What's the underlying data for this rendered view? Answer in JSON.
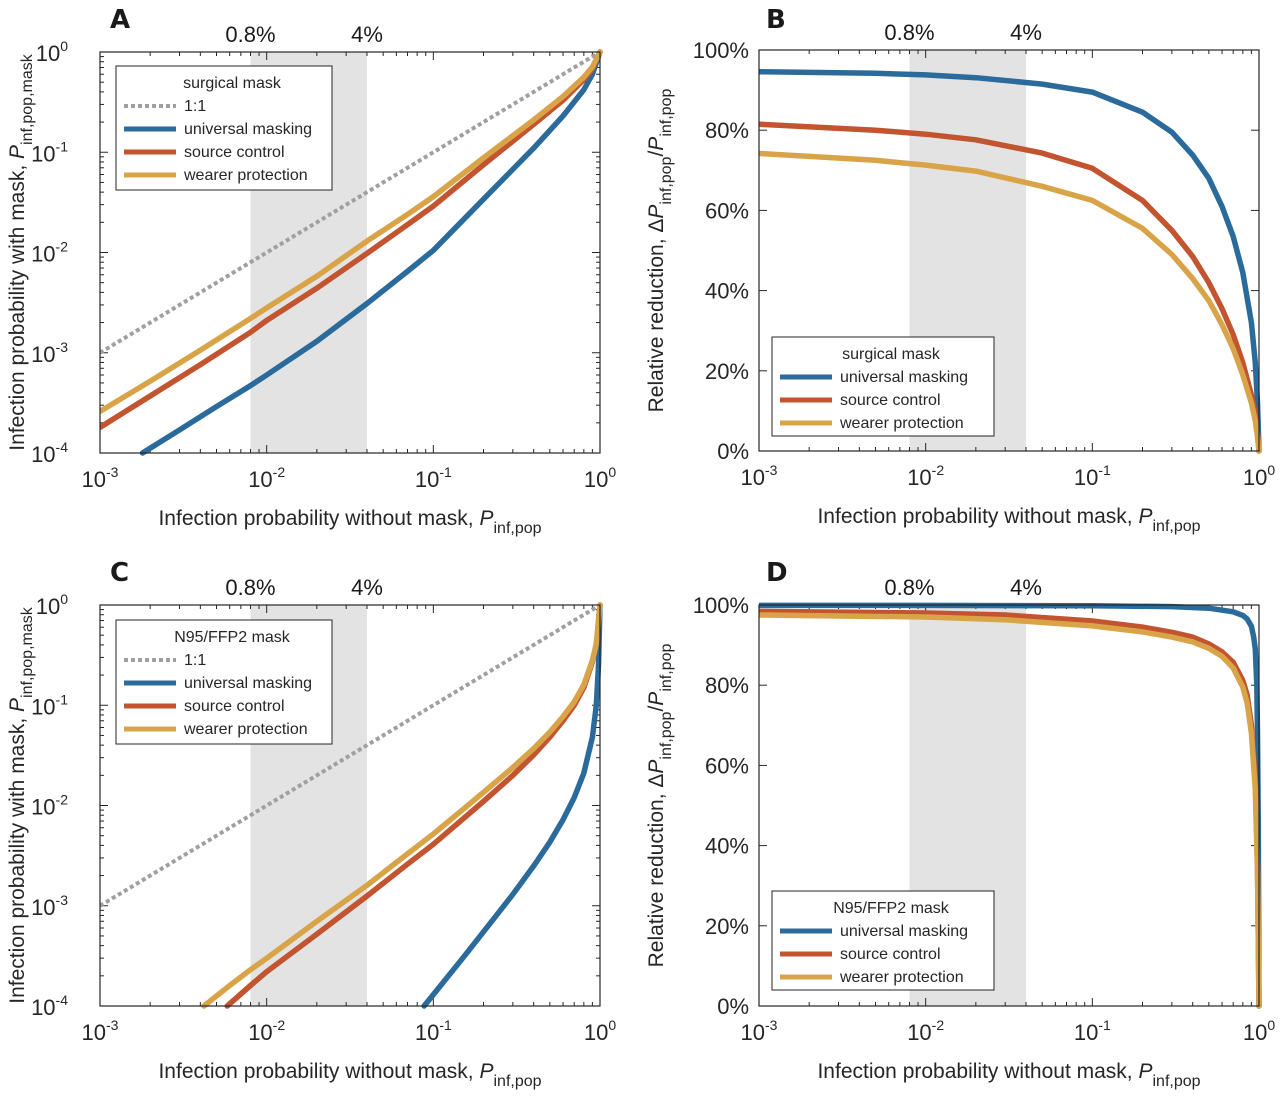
{
  "colors": {
    "universal": "#2a6b9c",
    "source": "#c2542f",
    "wearer": "#d9a448",
    "one_to_one": "#a0a0a0",
    "band": "#e3e3e3",
    "axis": "#262626"
  },
  "chart_data": [
    {
      "panel": "A",
      "type": "line",
      "x_scale": "log",
      "y_scale": "log",
      "xlim": [
        0.001,
        1
      ],
      "ylim": [
        0.0001,
        1
      ],
      "x_ticks": [
        {
          "base": "10",
          "exp": "-3"
        },
        {
          "base": "10",
          "exp": "-2"
        },
        {
          "base": "10",
          "exp": "-1"
        },
        {
          "base": "10",
          "exp": "0"
        }
      ],
      "y_ticks": [
        {
          "base": "10",
          "exp": "-4"
        },
        {
          "base": "10",
          "exp": "-3"
        },
        {
          "base": "10",
          "exp": "-2"
        },
        {
          "base": "10",
          "exp": "-1"
        },
        {
          "base": "10",
          "exp": "0"
        }
      ],
      "xlabel": {
        "main": "Infection probability without mask, ",
        "var": "P",
        "sub": "inf,pop"
      },
      "ylabel": {
        "main": "Infection probability with mask, ",
        "var": "P",
        "sub": "inf,pop,mask"
      },
      "band": {
        "from": 0.008,
        "to": 0.04,
        "labels": [
          "0.8%",
          "4%"
        ]
      },
      "legend": {
        "title": "surgical mask",
        "entries": [
          {
            "key": "one_to_one",
            "label": "1:1"
          },
          {
            "key": "universal",
            "label": "universal masking"
          },
          {
            "key": "source",
            "label": "source control"
          },
          {
            "key": "wearer",
            "label": "wearer protection"
          }
        ]
      },
      "series": [
        {
          "key": "one_to_one",
          "name": "1:1",
          "style": "dotted",
          "x": [
            0.001,
            0.01,
            0.1,
            1
          ],
          "y": [
            0.001,
            0.01,
            0.1,
            1
          ]
        },
        {
          "key": "universal",
          "name": "universal masking",
          "style": "solid",
          "x": [
            0.0018,
            0.003,
            0.005,
            0.008,
            0.01,
            0.02,
            0.04,
            0.07,
            0.1,
            0.2,
            0.4,
            0.6,
            0.8,
            0.9,
            1
          ],
          "y": [
            0.0001,
            0.00017,
            0.00029,
            0.00047,
            0.0006,
            0.0013,
            0.0031,
            0.0065,
            0.0105,
            0.034,
            0.11,
            0.23,
            0.42,
            0.6,
            1
          ]
        },
        {
          "key": "source",
          "name": "source control",
          "style": "solid",
          "x": [
            0.001,
            0.002,
            0.004,
            0.008,
            0.01,
            0.02,
            0.04,
            0.07,
            0.1,
            0.2,
            0.4,
            0.6,
            0.8,
            0.9,
            1
          ],
          "y": [
            0.00018,
            0.00037,
            0.00076,
            0.0016,
            0.0021,
            0.0044,
            0.0098,
            0.019,
            0.029,
            0.075,
            0.19,
            0.33,
            0.53,
            0.68,
            1
          ]
        },
        {
          "key": "wearer",
          "name": "wearer protection",
          "style": "solid",
          "x": [
            0.001,
            0.002,
            0.004,
            0.008,
            0.01,
            0.02,
            0.04,
            0.07,
            0.1,
            0.2,
            0.4,
            0.6,
            0.8,
            0.9,
            1
          ],
          "y": [
            0.00026,
            0.00052,
            0.00106,
            0.0022,
            0.0028,
            0.0058,
            0.013,
            0.024,
            0.036,
            0.088,
            0.21,
            0.36,
            0.56,
            0.71,
            1
          ]
        }
      ]
    },
    {
      "panel": "B",
      "type": "line",
      "x_scale": "log",
      "y_scale": "linear",
      "xlim": [
        0.001,
        1
      ],
      "ylim": [
        0,
        100
      ],
      "x_ticks": [
        {
          "base": "10",
          "exp": "-3"
        },
        {
          "base": "10",
          "exp": "-2"
        },
        {
          "base": "10",
          "exp": "-1"
        },
        {
          "base": "10",
          "exp": "0"
        }
      ],
      "y_tick_labels": [
        "0%",
        "20%",
        "40%",
        "60%",
        "80%",
        "100%"
      ],
      "xlabel": {
        "main": "Infection probability without mask, ",
        "var": "P",
        "sub": "inf,pop"
      },
      "ylabel": {
        "main": "Relative reduction, Δ",
        "var": "P",
        "sub": "inf,pop",
        "mid": "/",
        "var2": "P",
        "sub2": "inf,pop"
      },
      "band": {
        "from": 0.008,
        "to": 0.04,
        "labels": [
          "0.8%",
          "4%"
        ]
      },
      "legend": {
        "title": "surgical mask",
        "entries": [
          {
            "key": "universal",
            "label": "universal masking"
          },
          {
            "key": "source",
            "label": "source control"
          },
          {
            "key": "wearer",
            "label": "wearer protection"
          }
        ]
      },
      "series": [
        {
          "key": "universal",
          "name": "universal masking",
          "style": "solid",
          "x": [
            0.001,
            0.005,
            0.01,
            0.02,
            0.05,
            0.1,
            0.2,
            0.3,
            0.4,
            0.5,
            0.6,
            0.7,
            0.8,
            0.9,
            0.95,
            0.98,
            1
          ],
          "y": [
            94.6,
            94.2,
            93.8,
            93.1,
            91.5,
            89.5,
            84.5,
            79.5,
            73.8,
            68.0,
            61.0,
            53.5,
            44.5,
            32.0,
            22.0,
            12.0,
            0
          ]
        },
        {
          "key": "source",
          "name": "source control",
          "style": "solid",
          "x": [
            0.001,
            0.005,
            0.01,
            0.02,
            0.05,
            0.1,
            0.2,
            0.3,
            0.4,
            0.5,
            0.6,
            0.7,
            0.8,
            0.9,
            0.95,
            0.98,
            1
          ],
          "y": [
            81.5,
            80.0,
            79.0,
            77.6,
            74.3,
            70.5,
            62.5,
            55.0,
            48.5,
            42.0,
            35.5,
            29.0,
            22.0,
            14.0,
            9.0,
            4.5,
            0
          ]
        },
        {
          "key": "wearer",
          "name": "wearer protection",
          "style": "solid",
          "x": [
            0.001,
            0.005,
            0.01,
            0.02,
            0.05,
            0.1,
            0.2,
            0.3,
            0.4,
            0.5,
            0.6,
            0.7,
            0.8,
            0.9,
            0.95,
            0.98,
            1
          ],
          "y": [
            74.2,
            72.5,
            71.3,
            69.8,
            66.0,
            62.5,
            55.5,
            49.0,
            43.0,
            37.5,
            31.5,
            25.5,
            19.0,
            12.0,
            7.5,
            3.5,
            0
          ]
        }
      ]
    },
    {
      "panel": "C",
      "type": "line",
      "x_scale": "log",
      "y_scale": "log",
      "xlim": [
        0.001,
        1
      ],
      "ylim": [
        0.0001,
        1
      ],
      "x_ticks": [
        {
          "base": "10",
          "exp": "-3"
        },
        {
          "base": "10",
          "exp": "-2"
        },
        {
          "base": "10",
          "exp": "-1"
        },
        {
          "base": "10",
          "exp": "0"
        }
      ],
      "y_ticks": [
        {
          "base": "10",
          "exp": "-4"
        },
        {
          "base": "10",
          "exp": "-3"
        },
        {
          "base": "10",
          "exp": "-2"
        },
        {
          "base": "10",
          "exp": "-1"
        },
        {
          "base": "10",
          "exp": "0"
        }
      ],
      "xlabel": {
        "main": "Infection probability without mask, ",
        "var": "P",
        "sub": "inf,pop"
      },
      "ylabel": {
        "main": "Infection probability with mask, ",
        "var": "P",
        "sub": "inf,pop,mask"
      },
      "band": {
        "from": 0.008,
        "to": 0.04,
        "labels": [
          "0.8%",
          "4%"
        ]
      },
      "legend": {
        "title": "N95/FFP2 mask",
        "entries": [
          {
            "key": "one_to_one",
            "label": "1:1"
          },
          {
            "key": "universal",
            "label": "universal masking"
          },
          {
            "key": "source",
            "label": "source control"
          },
          {
            "key": "wearer",
            "label": "wearer protection"
          }
        ]
      },
      "series": [
        {
          "key": "one_to_one",
          "name": "1:1",
          "style": "dotted",
          "x": [
            0.001,
            0.01,
            0.1,
            1
          ],
          "y": [
            0.001,
            0.01,
            0.1,
            1
          ]
        },
        {
          "key": "universal",
          "name": "universal masking",
          "style": "solid",
          "x": [
            0.088,
            0.1,
            0.15,
            0.2,
            0.3,
            0.4,
            0.5,
            0.6,
            0.7,
            0.8,
            0.9,
            0.95,
            0.98,
            1
          ],
          "y": [
            0.0001,
            0.00013,
            0.0003,
            0.00055,
            0.0013,
            0.0025,
            0.0043,
            0.0072,
            0.012,
            0.021,
            0.048,
            0.1,
            0.25,
            1
          ]
        },
        {
          "key": "source",
          "name": "source control",
          "style": "solid",
          "x": [
            0.0058,
            0.008,
            0.01,
            0.02,
            0.04,
            0.07,
            0.1,
            0.2,
            0.3,
            0.4,
            0.5,
            0.6,
            0.7,
            0.8,
            0.9,
            0.95,
            1
          ],
          "y": [
            0.0001,
            0.00016,
            0.00022,
            0.00052,
            0.00125,
            0.0026,
            0.0041,
            0.011,
            0.02,
            0.032,
            0.048,
            0.07,
            0.1,
            0.15,
            0.27,
            0.4,
            1
          ]
        },
        {
          "key": "wearer",
          "name": "wearer protection",
          "style": "solid",
          "x": [
            0.0042,
            0.006,
            0.008,
            0.01,
            0.02,
            0.04,
            0.07,
            0.1,
            0.2,
            0.3,
            0.4,
            0.5,
            0.6,
            0.7,
            0.8,
            0.9,
            0.95,
            1
          ],
          "y": [
            0.0001,
            0.00016,
            0.00023,
            0.0003,
            0.0007,
            0.0016,
            0.0033,
            0.0052,
            0.0135,
            0.024,
            0.037,
            0.054,
            0.077,
            0.108,
            0.16,
            0.28,
            0.41,
            1
          ]
        }
      ]
    },
    {
      "panel": "D",
      "type": "line",
      "x_scale": "log",
      "y_scale": "linear",
      "xlim": [
        0.001,
        1
      ],
      "ylim": [
        0,
        100
      ],
      "x_ticks": [
        {
          "base": "10",
          "exp": "-3"
        },
        {
          "base": "10",
          "exp": "-2"
        },
        {
          "base": "10",
          "exp": "-1"
        },
        {
          "base": "10",
          "exp": "0"
        }
      ],
      "y_tick_labels": [
        "0%",
        "20%",
        "40%",
        "60%",
        "80%",
        "100%"
      ],
      "xlabel": {
        "main": "Infection probability without mask, ",
        "var": "P",
        "sub": "inf,pop"
      },
      "ylabel": {
        "main": "Relative reduction, Δ",
        "var": "P",
        "sub": "inf,pop",
        "mid": "/",
        "var2": "P",
        "sub2": "inf,pop"
      },
      "band": {
        "from": 0.008,
        "to": 0.04,
        "labels": [
          "0.8%",
          "4%"
        ]
      },
      "legend": {
        "title": "N95/FFP2 mask",
        "entries": [
          {
            "key": "universal",
            "label": "universal masking"
          },
          {
            "key": "source",
            "label": "source control"
          },
          {
            "key": "wearer",
            "label": "wearer protection"
          }
        ]
      },
      "series": [
        {
          "key": "universal",
          "name": "universal masking",
          "style": "solid",
          "x": [
            0.001,
            0.01,
            0.1,
            0.3,
            0.5,
            0.7,
            0.8,
            0.85,
            0.9,
            0.93,
            0.95,
            0.97,
            0.98,
            0.99,
            1
          ],
          "y": [
            99.9,
            99.9,
            99.8,
            99.6,
            99.2,
            98.3,
            97.4,
            96.5,
            94.7,
            92.0,
            89.0,
            80.0,
            68.0,
            45.0,
            0
          ]
        },
        {
          "key": "source",
          "name": "source control",
          "style": "solid",
          "x": [
            0.001,
            0.01,
            0.03,
            0.1,
            0.2,
            0.3,
            0.4,
            0.5,
            0.6,
            0.7,
            0.8,
            0.85,
            0.9,
            0.95,
            0.98,
            1
          ],
          "y": [
            98.4,
            98.0,
            97.5,
            96.0,
            94.5,
            93.2,
            92.0,
            90.3,
            88.3,
            85.7,
            81.2,
            77.5,
            70.0,
            56.0,
            35.0,
            0
          ]
        },
        {
          "key": "wearer",
          "name": "wearer protection",
          "style": "solid",
          "x": [
            0.001,
            0.01,
            0.03,
            0.1,
            0.2,
            0.3,
            0.4,
            0.5,
            0.6,
            0.7,
            0.8,
            0.85,
            0.9,
            0.95,
            0.98,
            1
          ],
          "y": [
            97.5,
            97.0,
            96.3,
            94.8,
            93.3,
            92.0,
            90.8,
            89.2,
            87.2,
            84.3,
            79.5,
            75.5,
            68.0,
            54.0,
            33.0,
            0
          ]
        }
      ]
    }
  ]
}
